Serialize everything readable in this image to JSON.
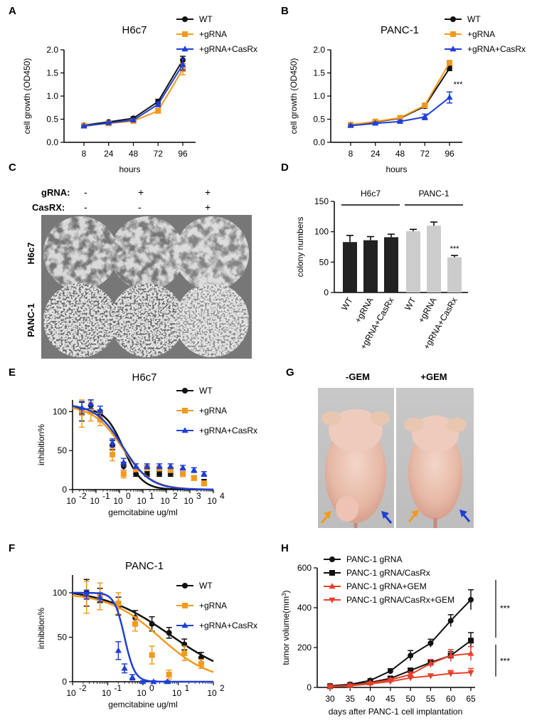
{
  "colors": {
    "black": "#111111",
    "orange": "#f39a1e",
    "blue": "#1f3fd6",
    "red": "#e8402a",
    "bar_dark": "#222222",
    "bar_light": "#cccccc"
  },
  "chart_data": [
    {
      "panel": "A",
      "type": "line",
      "title": "H6c7",
      "x": [
        "8",
        "24",
        "48",
        "72",
        "96"
      ],
      "xlabel": "hours",
      "ylabel": "cell growth (OD450)",
      "ylim": [
        0,
        2
      ],
      "yticks": [
        "0.0",
        "0.5",
        "1.0",
        "1.5",
        "2.0"
      ],
      "legend": "top-right",
      "series": [
        {
          "name": "WT",
          "values": [
            0.37,
            0.44,
            0.52,
            0.88,
            1.78
          ],
          "err": [
            0.02,
            0.02,
            0.03,
            0.05,
            0.08
          ],
          "color": "black",
          "marker": "circle"
        },
        {
          "name": "+gRNA",
          "values": [
            0.36,
            0.41,
            0.46,
            0.68,
            1.58
          ],
          "err": [
            0.02,
            0.02,
            0.03,
            0.05,
            0.12
          ],
          "color": "orange",
          "marker": "square"
        },
        {
          "name": "+gRNA+CasRx",
          "values": [
            0.35,
            0.42,
            0.48,
            0.82,
            1.68
          ],
          "err": [
            0.02,
            0.02,
            0.03,
            0.05,
            0.12
          ],
          "color": "blue",
          "marker": "triangle"
        }
      ]
    },
    {
      "panel": "B",
      "type": "line",
      "title": "PANC-1",
      "x": [
        "8",
        "24",
        "48",
        "72",
        "96"
      ],
      "xlabel": "hours",
      "ylabel": "cell growth (OD450)",
      "ylim": [
        0,
        2
      ],
      "yticks": [
        "0.0",
        "0.5",
        "1.0",
        "1.5",
        "2.0"
      ],
      "legend": "top-right",
      "annotation": "***",
      "series": [
        {
          "name": "WT",
          "values": [
            0.38,
            0.44,
            0.52,
            0.78,
            1.6
          ],
          "err": [
            0.02,
            0.03,
            0.03,
            0.04,
            0.05
          ],
          "color": "black",
          "marker": "circle"
        },
        {
          "name": "+gRNA",
          "values": [
            0.38,
            0.45,
            0.53,
            0.8,
            1.72
          ],
          "err": [
            0.02,
            0.03,
            0.03,
            0.04,
            0.05
          ],
          "color": "orange",
          "marker": "square"
        },
        {
          "name": "+gRNA+CasRx",
          "values": [
            0.36,
            0.41,
            0.45,
            0.55,
            0.97
          ],
          "err": [
            0.02,
            0.03,
            0.03,
            0.06,
            0.12
          ],
          "color": "blue",
          "marker": "triangle"
        }
      ]
    },
    {
      "panel": "D",
      "type": "bar",
      "categories": [
        "WT",
        "+gRNA",
        "+gRNA+CasRx",
        "WT",
        "+gRNA",
        "+gRNA+CasRx"
      ],
      "values": [
        83,
        86,
        91,
        101,
        110,
        58
      ],
      "err": [
        11,
        6,
        5,
        3,
        6,
        3
      ],
      "groups": [
        {
          "label": "H6c7",
          "color": "bar_dark"
        },
        {
          "label": "PANC-1",
          "color": "bar_light"
        }
      ],
      "ylabel": "colony numbers",
      "ylim": [
        0,
        150
      ],
      "yticks": [
        "0",
        "50",
        "100",
        "150"
      ],
      "annotation": "***"
    },
    {
      "panel": "E",
      "type": "line",
      "title": "H6c7",
      "xlabel": "gemcitabine ug/ml",
      "ylabel": "inhibition%",
      "xscale": "log",
      "xlim": [
        0.01,
        10000
      ],
      "xticks": [
        {
          "base": "10",
          "exp": "-2"
        },
        {
          "base": "10",
          "exp": "-1"
        },
        {
          "base": "10",
          "exp": "0"
        },
        {
          "base": "10",
          "exp": "1"
        },
        {
          "base": "10",
          "exp": "2"
        },
        {
          "base": "10",
          "exp": "3"
        },
        {
          "base": "10",
          "exp": "4"
        }
      ],
      "ylim": [
        0,
        115
      ],
      "yticks": [
        "0",
        "50",
        "100"
      ],
      "legend": "top-right",
      "series": [
        {
          "name": "WT",
          "x": [
            0.025,
            0.06,
            0.15,
            0.5,
            1.5,
            5,
            15,
            50,
            150,
            500,
            1500,
            4000
          ],
          "values": [
            100,
            108,
            97,
            57,
            30,
            20,
            20,
            20,
            20,
            20,
            15,
            10
          ],
          "err": [
            12,
            8,
            5,
            6,
            5,
            3,
            3,
            3,
            3,
            3,
            3,
            3
          ],
          "fit_ic50": 1.5,
          "fit_hill": 1.1,
          "fit_bottom": 0,
          "fit_top": 105,
          "color": "black",
          "marker": "circle"
        },
        {
          "name": "+gRNA",
          "x": [
            0.025,
            0.06,
            0.15,
            0.5,
            1.5,
            5,
            15,
            50,
            150,
            500,
            1500,
            4000
          ],
          "values": [
            98,
            100,
            90,
            45,
            20,
            26,
            28,
            27,
            25,
            20,
            15,
            8
          ],
          "err": [
            18,
            12,
            8,
            8,
            5,
            3,
            3,
            3,
            3,
            3,
            3,
            3
          ],
          "fit_ic50": 1.3,
          "fit_hill": 0.7,
          "fit_bottom": 0,
          "fit_top": 108,
          "color": "orange",
          "marker": "square"
        },
        {
          "name": "+gRNA+CasRx",
          "x": [
            0.025,
            0.06,
            0.15,
            0.5,
            1.5,
            5,
            15,
            50,
            150,
            500,
            1500,
            4000
          ],
          "values": [
            105,
            110,
            102,
            60,
            35,
            30,
            30,
            30,
            30,
            28,
            25,
            20
          ],
          "err": [
            8,
            6,
            5,
            5,
            5,
            3,
            3,
            3,
            3,
            3,
            3,
            3
          ],
          "fit_ic50": 1.4,
          "fit_hill": 0.75,
          "fit_bottom": 0,
          "fit_top": 110,
          "color": "blue",
          "marker": "triangle"
        }
      ]
    },
    {
      "panel": "F",
      "type": "line",
      "title": "PANC-1",
      "xlabel": "gemcitabine ug/ml",
      "ylabel": "inhibition%",
      "xscale": "log",
      "xlim": [
        0.01,
        100
      ],
      "xticks": [
        {
          "base": "10",
          "exp": "-2"
        },
        {
          "base": "10",
          "exp": "-1"
        },
        {
          "base": "10",
          "exp": "0"
        },
        {
          "base": "10",
          "exp": "1"
        },
        {
          "base": "10",
          "exp": "2"
        }
      ],
      "ylim": [
        0,
        120
      ],
      "yticks": [
        "0",
        "50",
        "100"
      ],
      "legend": "top-right",
      "series": [
        {
          "name": "WT",
          "x": [
            0.025,
            0.06,
            0.2,
            0.6,
            1.8,
            5.5,
            15,
            45
          ],
          "values": [
            100,
            97,
            85,
            72,
            65,
            55,
            42,
            27
          ],
          "err": [
            15,
            8,
            10,
            8,
            8,
            6,
            6,
            6
          ],
          "fit_ic50": 6,
          "fit_hill": 0.45,
          "fit_bottom": 0,
          "fit_top": 105,
          "color": "black",
          "marker": "circle"
        },
        {
          "name": "+gRNA",
          "x": [
            0.025,
            0.06,
            0.2,
            0.6,
            1.8,
            5.5,
            15,
            45
          ],
          "values": [
            95,
            96,
            88,
            65,
            30,
            8,
            32,
            20
          ],
          "err": [
            18,
            15,
            12,
            8,
            10,
            5,
            8,
            5
          ],
          "fit_ic50": 3,
          "fit_hill": 0.6,
          "fit_bottom": 0,
          "fit_top": 100,
          "color": "orange",
          "marker": "square"
        },
        {
          "name": "+gRNA+CasRx",
          "x": [
            0.025,
            0.06,
            0.2,
            0.3,
            0.5,
            1,
            2,
            5
          ],
          "values": [
            98,
            95,
            35,
            15,
            5,
            0,
            0,
            0
          ],
          "err": [
            5,
            5,
            10,
            5,
            3,
            1,
            1,
            1
          ],
          "fit_ic50": 0.3,
          "fit_hill": 3.0,
          "fit_bottom": 0,
          "fit_top": 100,
          "color": "blue",
          "marker": "triangle"
        }
      ]
    },
    {
      "panel": "H",
      "type": "line",
      "x": [
        "30",
        "35",
        "40",
        "45",
        "50",
        "55",
        "60",
        "65"
      ],
      "xlabel": "days after PANC-1 cell implantation",
      "ylabel": "tumor volume(mm",
      "ylabel_sup": "3",
      "ylabel_close": ")",
      "ylim": [
        0,
        600
      ],
      "yticks": [
        "0",
        "200",
        "400",
        "600"
      ],
      "legend": "top-left",
      "annotations": [
        "***",
        "***"
      ],
      "series": [
        {
          "name": "PANC-1 gRNA",
          "values": [
            8,
            15,
            35,
            82,
            160,
            222,
            335,
            440
          ],
          "err": [
            3,
            4,
            8,
            12,
            25,
            20,
            30,
            50
          ],
          "color": "black",
          "marker": "circle"
        },
        {
          "name": "PANC-1 gRNA/CasRx",
          "values": [
            6,
            12,
            25,
            45,
            85,
            125,
            160,
            235
          ],
          "err": [
            3,
            4,
            6,
            10,
            12,
            15,
            20,
            40
          ],
          "color": "black",
          "marker": "square"
        },
        {
          "name": "PANC-1 gRNA+GEM",
          "values": [
            5,
            10,
            22,
            38,
            65,
            120,
            160,
            170
          ],
          "err": [
            3,
            3,
            5,
            8,
            12,
            20,
            30,
            35
          ],
          "color": "red",
          "marker": "triangle"
        },
        {
          "name": "PANC-1 gRNA/CasRx+GEM",
          "values": [
            4,
            8,
            18,
            30,
            48,
            58,
            70,
            75
          ],
          "err": [
            2,
            3,
            4,
            6,
            10,
            10,
            15,
            20
          ],
          "color": "red",
          "marker": "triangle-down"
        }
      ]
    }
  ],
  "panel_c": {
    "label": "C",
    "rows": [
      {
        "label": "gRNA:",
        "values": [
          "-",
          "+",
          "+"
        ]
      },
      {
        "label": "CasRX:",
        "values": [
          "-",
          "-",
          "+"
        ]
      }
    ],
    "cell_lines": [
      "H6c7",
      "PANC-1"
    ]
  },
  "panel_g": {
    "label": "G",
    "groups": [
      "-GEM",
      "+GEM"
    ]
  }
}
